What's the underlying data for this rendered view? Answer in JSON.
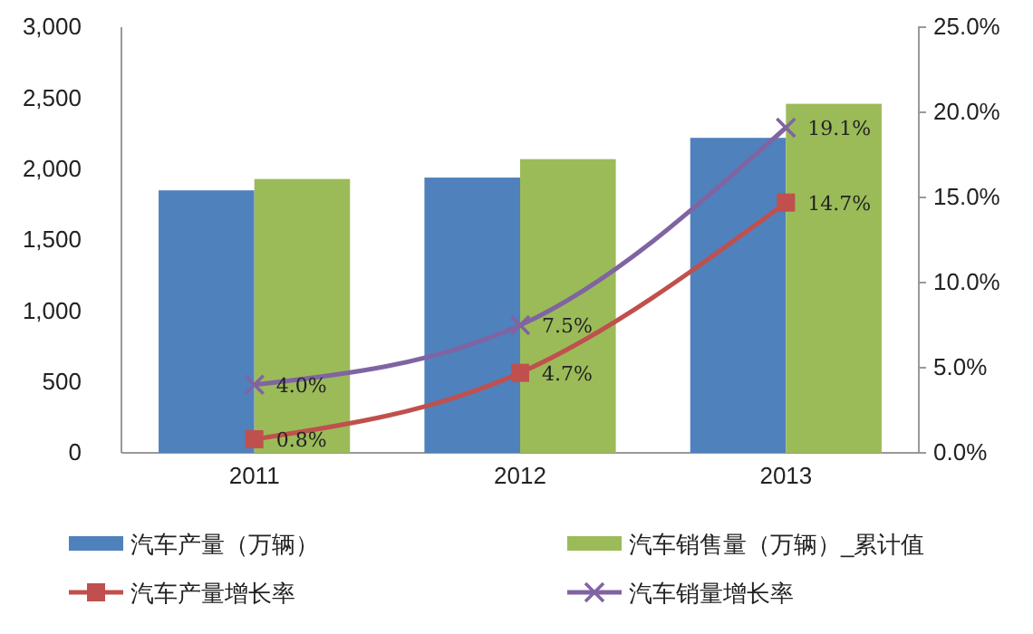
{
  "chart_data": {
    "type": "bar",
    "categories": [
      "2011",
      "2012",
      "2013"
    ],
    "series": [
      {
        "name": "汽车产量（万辆）",
        "color": "#4f81bd",
        "values": [
          1850,
          1940,
          2220
        ]
      },
      {
        "name": "汽车销售量（万辆）_累计值",
        "color": "#9bbb59",
        "values": [
          1930,
          2070,
          2460
        ]
      },
      {
        "name": "汽车产量增长率",
        "type": "line",
        "axis": "y2",
        "color": "#c0504d",
        "marker": "square",
        "values": [
          0.8,
          4.7,
          14.7
        ],
        "value_labels": [
          "0.8%",
          "4.7%",
          "14.7%"
        ]
      },
      {
        "name": "汽车销量增长率",
        "type": "line",
        "axis": "y2",
        "color": "#8064a2",
        "marker": "cross",
        "values": [
          4.0,
          7.5,
          19.1
        ],
        "value_labels": [
          "4.0%",
          "7.5%",
          "19.1%"
        ]
      }
    ],
    "ylim": [
      0,
      3000
    ],
    "yticks": [
      {
        "value": 0,
        "label": "0"
      },
      {
        "value": 500,
        "label": "500"
      },
      {
        "value": 1000,
        "label": "1,000"
      },
      {
        "value": 1500,
        "label": "1,500"
      },
      {
        "value": 2000,
        "label": "2,000"
      },
      {
        "value": 2500,
        "label": "2,500"
      },
      {
        "value": 3000,
        "label": "3,000"
      }
    ],
    "y2lim": [
      0,
      25
    ],
    "y2ticks": [
      {
        "value": 0,
        "label": "0.0%"
      },
      {
        "value": 5,
        "label": "5.0%"
      },
      {
        "value": 10,
        "label": "10.0%"
      },
      {
        "value": 15,
        "label": "15.0%"
      },
      {
        "value": 20,
        "label": "20.0%"
      },
      {
        "value": 25,
        "label": "25.0%"
      }
    ],
    "legend": "bottom",
    "grid": false
  }
}
